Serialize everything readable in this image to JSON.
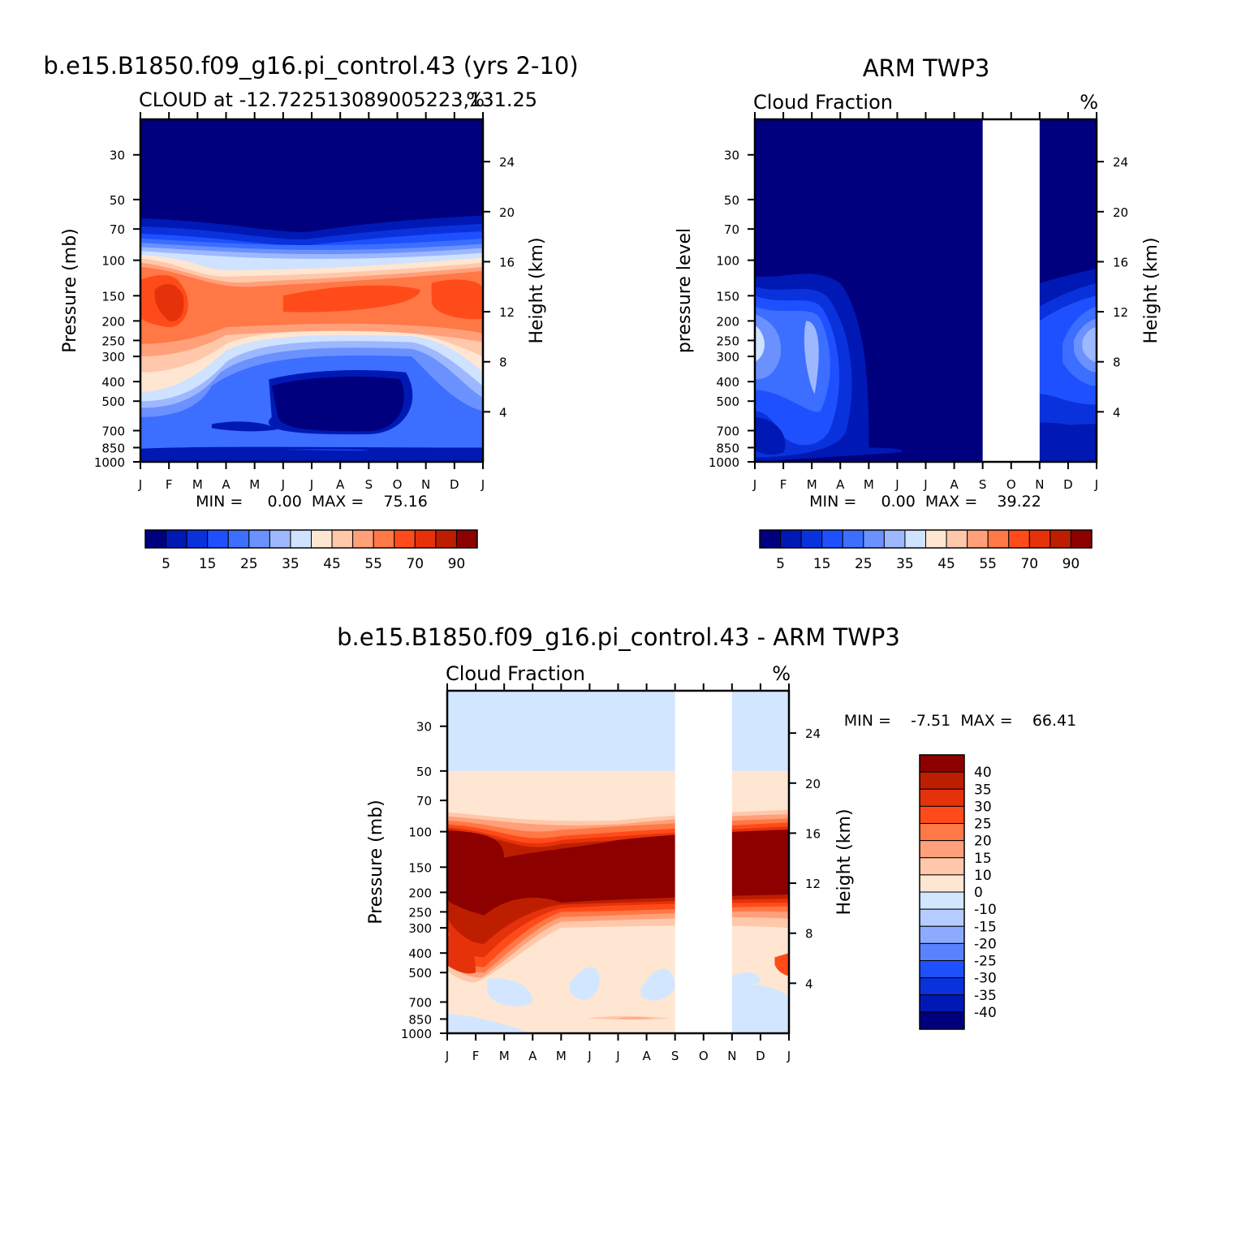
{
  "chart_data": [
    {
      "id": "model",
      "type": "heatmap",
      "title": "b.e15.B1850.f09_g16.pi_control.43 (yrs 2-10)",
      "subtitle_left": "CLOUD at -12.722513089005223,131.25",
      "subtitle_right": "%",
      "xlabel": "",
      "ylabel": "Pressure (mb)",
      "y2label": "Height (km)",
      "x_ticks": [
        "J",
        "F",
        "M",
        "A",
        "M",
        "J",
        "J",
        "A",
        "S",
        "O",
        "N",
        "D",
        "J"
      ],
      "y_ticks": [
        30,
        50,
        70,
        100,
        150,
        200,
        250,
        300,
        400,
        500,
        700,
        850,
        1000
      ],
      "y_range": [
        20,
        1000
      ],
      "height_ticks": [
        24,
        20,
        16,
        12,
        8,
        4
      ],
      "stats": "MIN =     0.00  MAX =    75.16",
      "missing_months": [],
      "levels": [
        800,
        200,
        100,
        60
      ],
      "profile": [
        {
          "p": 1000,
          "v": 15
        },
        {
          "p": 850,
          "v": 14
        },
        {
          "p": 700,
          "v": 12
        },
        {
          "p": 500,
          "v": 12
        },
        {
          "p": 400,
          "v": 18
        },
        {
          "p": 300,
          "v": 28
        },
        {
          "p": 250,
          "v": 42
        },
        {
          "p": 200,
          "v": 58
        },
        {
          "p": 150,
          "v": 63
        },
        {
          "p": 120,
          "v": 55
        },
        {
          "p": 100,
          "v": 40
        },
        {
          "p": 90,
          "v": 30
        },
        {
          "p": 80,
          "v": 15
        },
        {
          "p": 70,
          "v": 8
        },
        {
          "p": 60,
          "v": 3
        },
        {
          "p": 50,
          "v": 0
        },
        {
          "p": 20,
          "v": 0
        }
      ],
      "colorbar": {
        "orientation": "horizontal",
        "labels": [
          "5",
          "15",
          "25",
          "35",
          "45",
          "55",
          "70",
          "90"
        ],
        "colors": [
          "#00007f",
          "#0019b4",
          "#0a32dc",
          "#1e50ff",
          "#3c6eff",
          "#6b91ff",
          "#9db8ff",
          "#cfe2ff",
          "#ffe6d2",
          "#ffc8aa",
          "#ffa07a",
          "#ff7846",
          "#ff4b1a",
          "#e6320a",
          "#be1e00",
          "#8c0000"
        ],
        "bounds": [
          0,
          5,
          10,
          15,
          20,
          25,
          30,
          35,
          40,
          45,
          50,
          55,
          60,
          70,
          80,
          90,
          100
        ]
      }
    },
    {
      "id": "obs",
      "type": "heatmap",
      "title": "ARM TWP3",
      "subtitle_left": "Cloud Fraction",
      "subtitle_right": "%",
      "xlabel": "",
      "ylabel": "pressure level",
      "y2label": "Height (km)",
      "x_ticks": [
        "J",
        "F",
        "M",
        "A",
        "M",
        "J",
        "J",
        "A",
        "S",
        "O",
        "N",
        "D",
        "J"
      ],
      "y_ticks": [
        30,
        50,
        70,
        100,
        150,
        200,
        250,
        300,
        400,
        500,
        700,
        850,
        1000
      ],
      "y_range": [
        20,
        1000
      ],
      "height_ticks": [
        24,
        20,
        16,
        12,
        8,
        4
      ],
      "stats": "MIN =     0.00  MAX =    39.22",
      "missing_months": [
        "Sep",
        "Oct"
      ],
      "colorbar": {
        "orientation": "horizontal",
        "labels": [
          "5",
          "15",
          "25",
          "35",
          "45",
          "55",
          "70",
          "90"
        ],
        "colors": [
          "#00007f",
          "#0019b4",
          "#0a32dc",
          "#1e50ff",
          "#3c6eff",
          "#6b91ff",
          "#9db8ff",
          "#cfe2ff",
          "#ffe6d2",
          "#ffc8aa",
          "#ffa07a",
          "#ff7846",
          "#ff4b1a",
          "#e6320a",
          "#be1e00",
          "#8c0000"
        ],
        "bounds": [
          0,
          5,
          10,
          15,
          20,
          25,
          30,
          35,
          40,
          45,
          50,
          55,
          60,
          70,
          80,
          90,
          100
        ]
      }
    },
    {
      "id": "diff",
      "type": "heatmap",
      "title": "b.e15.B1850.f09_g16.pi_control.43 - ARM TWP3",
      "subtitle_left": "Cloud Fraction",
      "subtitle_right": "%",
      "xlabel": "",
      "ylabel": "Pressure (mb)",
      "y2label": "Height (km)",
      "x_ticks": [
        "J",
        "F",
        "M",
        "A",
        "M",
        "J",
        "J",
        "A",
        "S",
        "O",
        "N",
        "D",
        "J"
      ],
      "y_ticks": [
        30,
        50,
        70,
        100,
        150,
        200,
        250,
        300,
        400,
        500,
        700,
        850,
        1000
      ],
      "y_range": [
        20,
        1000
      ],
      "height_ticks": [
        24,
        20,
        16,
        12,
        8,
        4
      ],
      "stats": "MIN =    -7.51  MAX =    66.41",
      "missing_months": [
        "Sep",
        "Oct"
      ],
      "colorbar": {
        "orientation": "vertical",
        "labels": [
          "40",
          "35",
          "30",
          "25",
          "20",
          "15",
          "10",
          "0",
          "-10",
          "-15",
          "-20",
          "-25",
          "-30",
          "-35",
          "-40"
        ],
        "colors": [
          "#8c0000",
          "#be1e00",
          "#e6320a",
          "#ff4b1a",
          "#ff7846",
          "#ffa07a",
          "#ffc8aa",
          "#ffe6d2",
          "#d2e6ff",
          "#b4ccff",
          "#8cabff",
          "#5a82ff",
          "#1e50ff",
          "#0a32dc",
          "#0019b4",
          "#00007f"
        ]
      }
    }
  ]
}
